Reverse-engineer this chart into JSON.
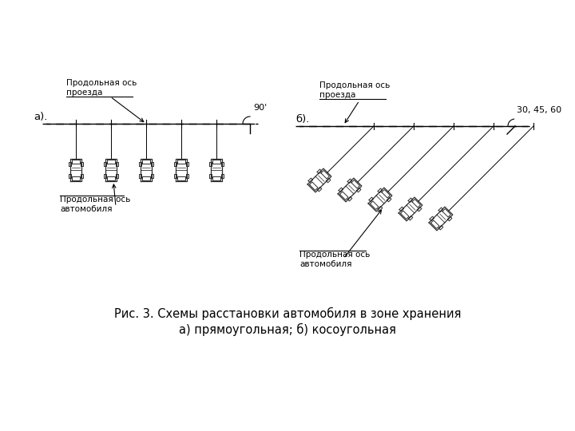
{
  "bg_color": "#ffffff",
  "fig_width": 7.2,
  "fig_height": 5.4,
  "caption_line1": "Рис. 3. Схемы расстановки автомобиля в зоне хранения",
  "caption_line2": "а) прямоугольная; б) косоугольная",
  "label_a": "а).",
  "label_b": "б).",
  "text_axis_road_a": "Продольная ось\nпроезда",
  "text_axis_car_a": "Продольная ось\nавтомобиля",
  "text_angle_a": "90'",
  "text_axis_road_b": "Продольная ось\nпроезда",
  "text_axis_car_b": "Продольная ось\nавтомобиля",
  "text_angle_b": "30, 45, 60",
  "n_cars_a": 5,
  "n_cars_b": 5
}
